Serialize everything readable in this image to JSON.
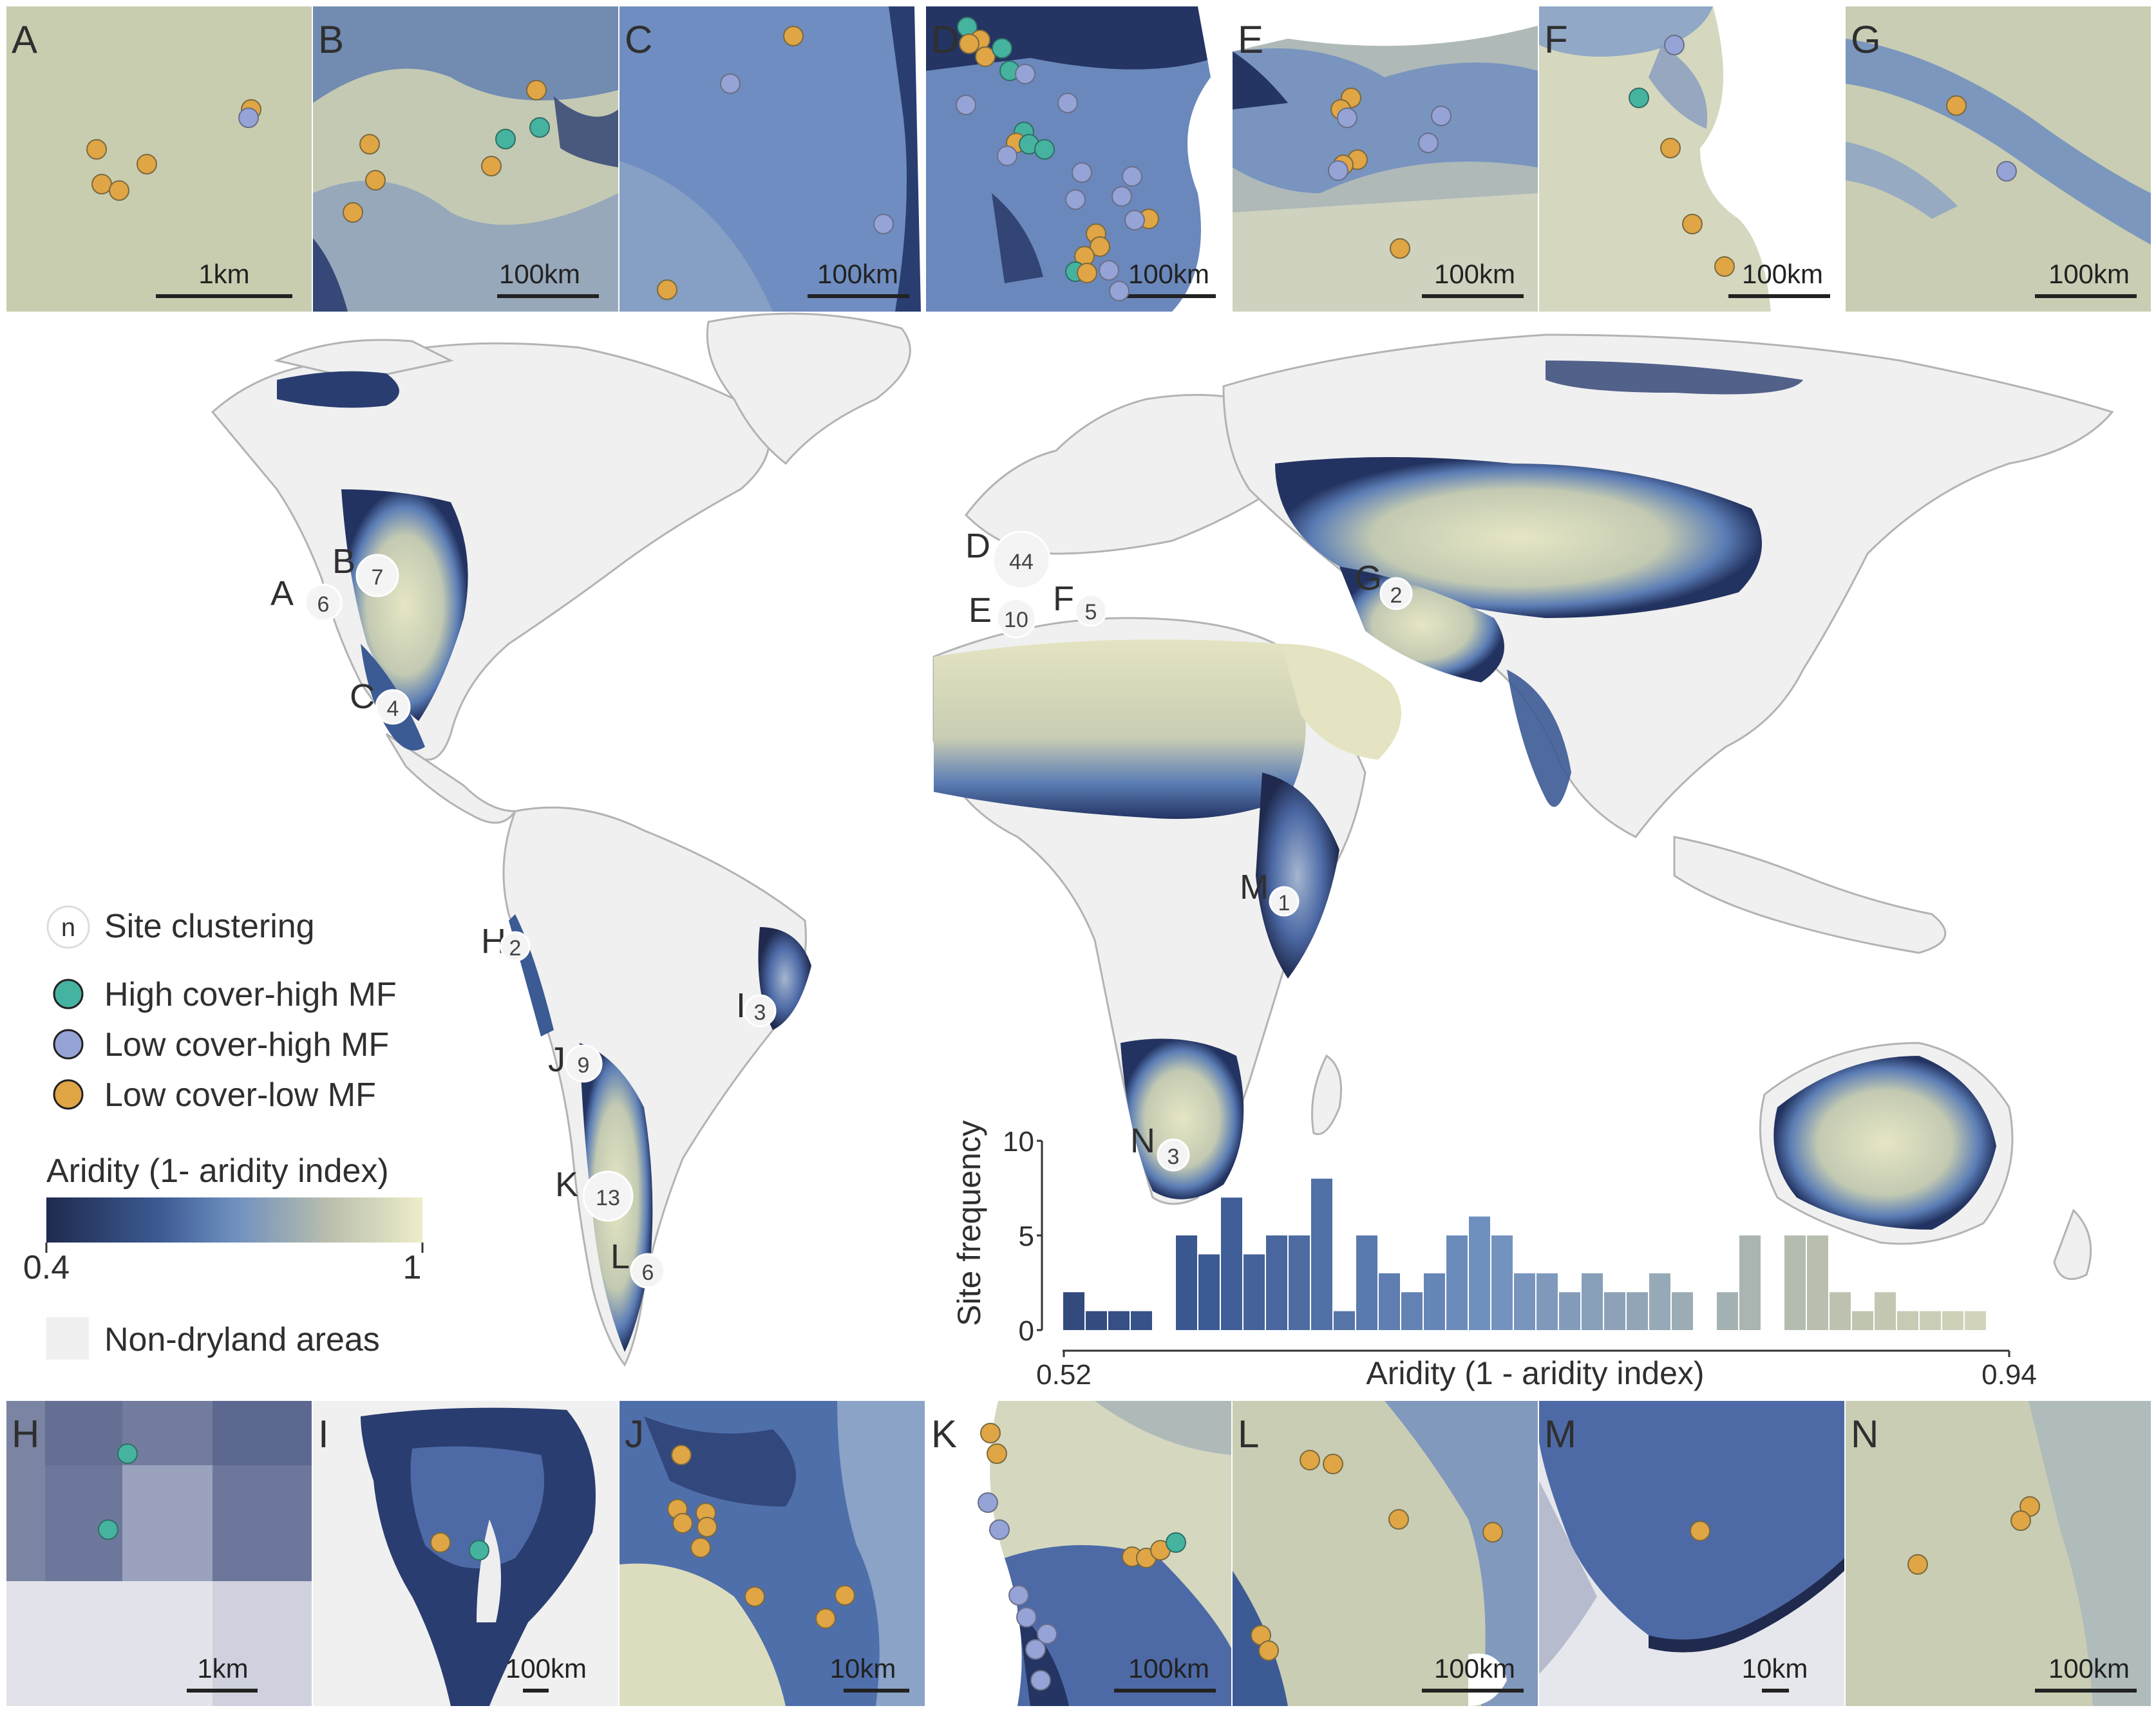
{
  "colors": {
    "aridity_low": "#1f2a4e",
    "aridity_mid": "#5b7db5",
    "aridity_high": "#eeedc8",
    "non_dryland": "#f0f0f0",
    "high_cover_high_mf": "#45b3a0",
    "low_cover_high_mf": "#95a3d6",
    "low_cover_low_mf": "#e0a544",
    "label": "#2f2f2f",
    "land_outline": "#b3b3b3"
  },
  "panels_top": [
    {
      "letter": "A",
      "scale": "1km"
    },
    {
      "letter": "B",
      "scale": "100km"
    },
    {
      "letter": "C",
      "scale": "100km"
    },
    {
      "letter": "D",
      "scale": "100km"
    },
    {
      "letter": "E",
      "scale": "100km"
    },
    {
      "letter": "F",
      "scale": "100km"
    },
    {
      "letter": "G",
      "scale": "100km"
    }
  ],
  "panels_bottom": [
    {
      "letter": "H",
      "scale": "1km"
    },
    {
      "letter": "I",
      "scale": "100km"
    },
    {
      "letter": "J",
      "scale": "10km"
    },
    {
      "letter": "K",
      "scale": "100km"
    },
    {
      "letter": "L",
      "scale": "100km"
    },
    {
      "letter": "M",
      "scale": "10km"
    },
    {
      "letter": "N",
      "scale": "100km"
    }
  ],
  "map_sites": [
    {
      "letter": "A",
      "n": "6"
    },
    {
      "letter": "B",
      "n": "7"
    },
    {
      "letter": "C",
      "n": "4"
    },
    {
      "letter": "D",
      "n": "44"
    },
    {
      "letter": "E",
      "n": "10"
    },
    {
      "letter": "F",
      "n": "5"
    },
    {
      "letter": "G",
      "n": "2"
    },
    {
      "letter": "H",
      "n": "2"
    },
    {
      "letter": "I",
      "n": "3"
    },
    {
      "letter": "J",
      "n": "9"
    },
    {
      "letter": "K",
      "n": "13"
    },
    {
      "letter": "L",
      "n": "6"
    },
    {
      "letter": "M",
      "n": "1"
    },
    {
      "letter": "N",
      "n": "3"
    }
  ],
  "legend": {
    "cluster_symbol": "n",
    "cluster_label": "Site clustering",
    "high_cover_high_mf": "High cover-high MF",
    "low_cover_high_mf": "Low cover-high MF",
    "low_cover_low_mf": "Low cover-low MF",
    "aridity_title": "Aridity (1- aridity index)",
    "aridity_min": "0.4",
    "aridity_max": "1",
    "non_dryland": "Non-dryland areas"
  },
  "chart_data": {
    "type": "bar",
    "ylabel": "Site frequency",
    "xlabel": "Aridity (1 - aridity index)",
    "x_tick_labels": [
      "0.52",
      "0.94"
    ],
    "y_ticks": [
      "0",
      "5",
      "10"
    ],
    "ylim": [
      0,
      10
    ],
    "xlim": [
      0.52,
      0.94
    ],
    "bin_width": 0.01,
    "bins": [
      {
        "x": 0.52,
        "count": 2
      },
      {
        "x": 0.53,
        "count": 1
      },
      {
        "x": 0.54,
        "count": 1
      },
      {
        "x": 0.55,
        "count": 1
      },
      {
        "x": 0.57,
        "count": 5
      },
      {
        "x": 0.58,
        "count": 4
      },
      {
        "x": 0.59,
        "count": 7
      },
      {
        "x": 0.6,
        "count": 4
      },
      {
        "x": 0.61,
        "count": 5
      },
      {
        "x": 0.62,
        "count": 5
      },
      {
        "x": 0.63,
        "count": 8
      },
      {
        "x": 0.64,
        "count": 1
      },
      {
        "x": 0.65,
        "count": 5
      },
      {
        "x": 0.66,
        "count": 3
      },
      {
        "x": 0.67,
        "count": 2
      },
      {
        "x": 0.68,
        "count": 3
      },
      {
        "x": 0.69,
        "count": 5
      },
      {
        "x": 0.7,
        "count": 6
      },
      {
        "x": 0.71,
        "count": 5
      },
      {
        "x": 0.72,
        "count": 3
      },
      {
        "x": 0.73,
        "count": 3
      },
      {
        "x": 0.74,
        "count": 2
      },
      {
        "x": 0.75,
        "count": 3
      },
      {
        "x": 0.76,
        "count": 2
      },
      {
        "x": 0.77,
        "count": 2
      },
      {
        "x": 0.78,
        "count": 3
      },
      {
        "x": 0.79,
        "count": 2
      },
      {
        "x": 0.81,
        "count": 2
      },
      {
        "x": 0.82,
        "count": 5
      },
      {
        "x": 0.84,
        "count": 5
      },
      {
        "x": 0.85,
        "count": 5
      },
      {
        "x": 0.86,
        "count": 2
      },
      {
        "x": 0.87,
        "count": 1
      },
      {
        "x": 0.88,
        "count": 2
      },
      {
        "x": 0.89,
        "count": 1
      },
      {
        "x": 0.9,
        "count": 1
      },
      {
        "x": 0.91,
        "count": 1
      },
      {
        "x": 0.92,
        "count": 1
      }
    ]
  }
}
